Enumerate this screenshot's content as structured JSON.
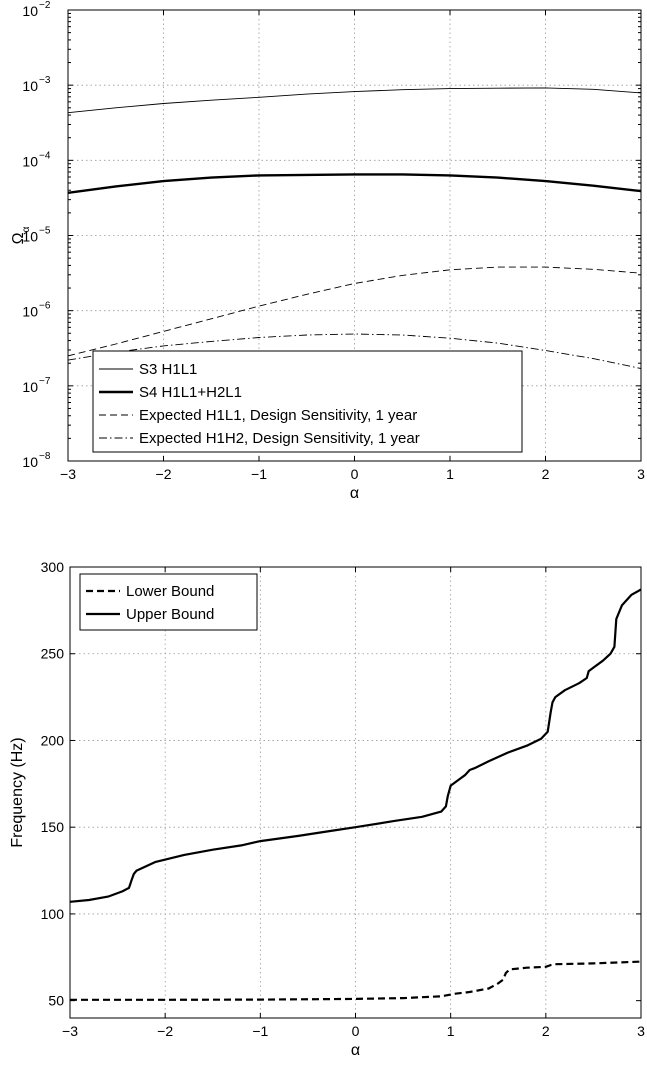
{
  "chart_data": [
    {
      "type": "line",
      "title": "",
      "xlabel": "α",
      "ylabel": "Ω",
      "ylabel_subscript": "α",
      "yscale": "log",
      "xlim": [
        -3,
        3
      ],
      "ylim": [
        1e-08,
        0.01
      ],
      "xticks": [
        "−3",
        "−2",
        "−1",
        "0",
        "1",
        "2",
        "3"
      ],
      "yticks": [
        {
          "base": "10",
          "exp": "−8",
          "v": 1e-08
        },
        {
          "base": "10",
          "exp": "−7",
          "v": 1e-07
        },
        {
          "base": "10",
          "exp": "−6",
          "v": 1e-06
        },
        {
          "base": "10",
          "exp": "−5",
          "v": 1e-05
        },
        {
          "base": "10",
          "exp": "−4",
          "v": 0.0001
        },
        {
          "base": "10",
          "exp": "−3",
          "v": 0.001
        },
        {
          "base": "10",
          "exp": "−2",
          "v": 0.01
        }
      ],
      "grid": true,
      "legend_position": "bottom-left",
      "series": [
        {
          "name": "S3 H1L1",
          "style": "solid",
          "width": 0.9,
          "x": [
            -3,
            -2.5,
            -2,
            -1.5,
            -1,
            -0.5,
            0,
            0.5,
            1,
            1.5,
            2,
            2.5,
            3
          ],
          "y": [
            0.00043,
            0.0005,
            0.00057,
            0.00063,
            0.00069,
            0.00076,
            0.00082,
            0.00087,
            0.0009,
            0.00091,
            0.00092,
            0.00088,
            0.00079
          ]
        },
        {
          "name": "S4 H1L1+H2L1",
          "style": "solid",
          "width": 2.4,
          "x": [
            -3,
            -2.5,
            -2,
            -1.5,
            -1,
            -0.5,
            0,
            0.5,
            1,
            1.5,
            2,
            2.5,
            3
          ],
          "y": [
            3.7e-05,
            4.5e-05,
            5.3e-05,
            5.9e-05,
            6.3e-05,
            6.4e-05,
            6.5e-05,
            6.5e-05,
            6.3e-05,
            5.9e-05,
            5.3e-05,
            4.6e-05,
            3.9e-05
          ]
        },
        {
          "name": "Expected H1L1, Design Sensitivity, 1 year",
          "style": "dashed",
          "width": 0.9,
          "x": [
            -3,
            -2.5,
            -2,
            -1.5,
            -1,
            -0.5,
            0,
            0.5,
            1,
            1.5,
            2,
            2.5,
            3
          ],
          "y": [
            2.5e-07,
            3.6e-07,
            5.3e-07,
            7.8e-07,
            1.15e-06,
            1.65e-06,
            2.3e-06,
            2.95e-06,
            3.5e-06,
            3.8e-06,
            3.8e-06,
            3.55e-06,
            3.15e-06
          ]
        },
        {
          "name": "Expected H1H2, Design Sensitivity, 1 year",
          "style": "dashdot",
          "width": 0.9,
          "x": [
            -3,
            -2.5,
            -2,
            -1.5,
            -1,
            -0.5,
            0,
            0.5,
            1,
            1.5,
            2,
            2.5,
            3
          ],
          "y": [
            2.2e-07,
            2.8e-07,
            3.4e-07,
            3.9e-07,
            4.4e-07,
            4.75e-07,
            4.9e-07,
            4.75e-07,
            4.3e-07,
            3.7e-07,
            2.95e-07,
            2.3e-07,
            1.7e-07
          ]
        }
      ]
    },
    {
      "type": "line",
      "title": "",
      "xlabel": "α",
      "ylabel": "Frequency (Hz)",
      "yscale": "linear",
      "xlim": [
        -3,
        3
      ],
      "ylim": [
        40,
        300
      ],
      "xticks": [
        "−3",
        "−2",
        "−1",
        "0",
        "1",
        "2",
        "3"
      ],
      "yticks": [
        50,
        100,
        150,
        200,
        250,
        300
      ],
      "grid": true,
      "legend_position": "top-left",
      "series": [
        {
          "name": "Lower Bound",
          "style": "dashed",
          "width": 2.2,
          "x": [
            -3,
            -2,
            -1,
            0,
            0.5,
            0.9,
            1.0,
            1.05,
            1.2,
            1.4,
            1.5,
            1.55,
            1.58,
            1.62,
            1.8,
            2.0,
            2.05,
            2.1,
            2.5,
            3
          ],
          "y": [
            50.5,
            50.5,
            50.6,
            51,
            51.5,
            52.5,
            53.5,
            54,
            55,
            57,
            60,
            62,
            66,
            68,
            69,
            69.5,
            70.5,
            71,
            71.5,
            72.5
          ]
        },
        {
          "name": "Upper Bound",
          "style": "solid",
          "width": 2.2,
          "x": [
            -3,
            -2.8,
            -2.6,
            -2.45,
            -2.38,
            -2.35,
            -2.33,
            -2.3,
            -2.1,
            -1.8,
            -1.5,
            -1.2,
            -1.0,
            -0.6,
            -0.3,
            0,
            0.4,
            0.7,
            0.9,
            0.95,
            0.97,
            1.0,
            1.1,
            1.15,
            1.2,
            1.25,
            1.4,
            1.6,
            1.8,
            1.95,
            2.02,
            2.05,
            2.07,
            2.1,
            2.2,
            2.35,
            2.43,
            2.45,
            2.5,
            2.6,
            2.68,
            2.72,
            2.74,
            2.8,
            2.9,
            3.0
          ],
          "y": [
            107,
            108,
            110,
            113,
            115,
            120,
            123,
            125,
            130,
            134,
            137,
            139.5,
            142,
            145,
            147.5,
            150,
            153.5,
            156,
            159,
            162,
            168,
            174,
            178,
            180,
            183,
            184,
            188,
            193,
            197,
            201,
            205,
            216,
            222,
            225,
            229,
            233,
            236,
            240,
            242,
            246,
            250,
            254,
            270,
            278,
            284,
            287
          ]
        }
      ]
    }
  ]
}
